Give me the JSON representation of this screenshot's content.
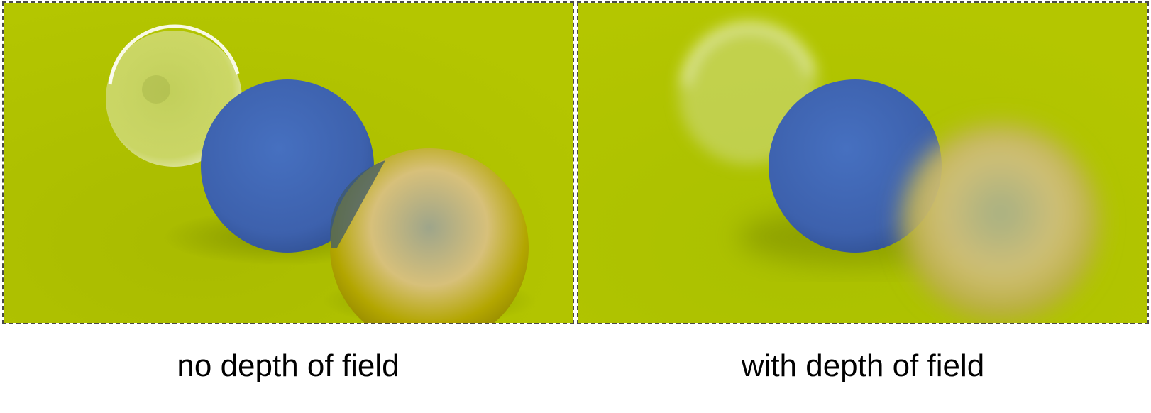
{
  "captions": {
    "left": "no depth of field",
    "right": "with depth of field"
  },
  "colors": {
    "floor": "#b2c400",
    "blue_sphere": "#3e62b0",
    "gold_sphere": "#a69a00",
    "border": "#4a4a4a"
  }
}
